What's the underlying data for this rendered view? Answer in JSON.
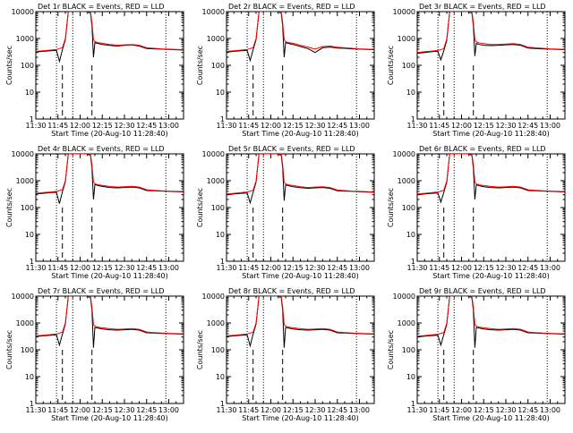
{
  "colors": {
    "events": "#000000",
    "lld": "#ff0000",
    "axes": "#000000",
    "background": "#ffffff"
  },
  "chart_data": {
    "type": "line",
    "yscale": "log",
    "ylim": [
      1,
      10000
    ],
    "y_ticks": [
      1,
      10,
      100,
      1000,
      10000
    ],
    "y_tick_labels": [
      "1",
      "10",
      "100",
      "1000",
      "10000"
    ],
    "ylabel": "Counts/sec",
    "xlim": [
      "11:30",
      "13:10"
    ],
    "x_ticks": [
      "11:30",
      "11:45",
      "12:00",
      "12:15",
      "12:30",
      "12:45",
      "13:00"
    ],
    "xlabel": "Start Time (20-Aug-10 11:28:40)",
    "grid": false,
    "series_names": [
      "Events",
      "LLD"
    ],
    "dashed_time_markers": [
      "11:48",
      "12:08"
    ],
    "dotted_time_markers": [
      "11:44",
      "11:55",
      "12:58"
    ],
    "panels": [
      {
        "title": "Det 1r BLACK = Events, RED = LLD",
        "x": [
          "11:30",
          "11:35",
          "11:40",
          "11:44",
          "11:46",
          "11:48",
          "11:50",
          "11:52",
          "11:54",
          "11:56",
          "12:00",
          "12:04",
          "12:07",
          "12:08",
          "12:09",
          "12:10",
          "12:12",
          "12:15",
          "12:20",
          "12:25",
          "12:30",
          "12:35",
          "12:40",
          "12:45",
          "12:50",
          "12:55",
          "13:00",
          "13:05",
          "13:10"
        ],
        "events": [
          310,
          330,
          350,
          360,
          140,
          380,
          900,
          10000,
          10000,
          10000,
          10000,
          10000,
          9000,
          3000,
          200,
          700,
          650,
          600,
          550,
          520,
          560,
          580,
          520,
          420,
          410,
          400,
          390,
          380,
          370
        ],
        "lld": [
          330,
          350,
          370,
          390,
          420,
          450,
          1000,
          10000,
          10000,
          10000,
          10000,
          10000,
          10000,
          4000,
          900,
          760,
          700,
          660,
          600,
          560,
          580,
          600,
          560,
          450,
          430,
          410,
          400,
          390,
          380
        ]
      },
      {
        "title": "Det 2r BLACK = Events, RED = LLD",
        "x": [
          "11:30",
          "11:35",
          "11:40",
          "11:44",
          "11:46",
          "11:48",
          "11:50",
          "11:52",
          "11:54",
          "11:56",
          "12:00",
          "12:04",
          "12:07",
          "12:08",
          "12:09",
          "12:10",
          "12:12",
          "12:15",
          "12:20",
          "12:25",
          "12:30",
          "12:35",
          "12:40",
          "12:45",
          "12:50",
          "12:55",
          "13:00",
          "13:05",
          "13:10"
        ],
        "events": [
          310,
          330,
          350,
          360,
          150,
          380,
          900,
          10000,
          10000,
          10000,
          10000,
          10000,
          9000,
          3000,
          200,
          700,
          650,
          600,
          500,
          420,
          300,
          450,
          480,
          440,
          430,
          410,
          400,
          390,
          380
        ],
        "lld": [
          330,
          350,
          370,
          390,
          420,
          450,
          1000,
          10000,
          10000,
          10000,
          10000,
          10000,
          10000,
          4000,
          900,
          760,
          700,
          660,
          560,
          480,
          400,
          500,
          520,
          470,
          450,
          430,
          410,
          400,
          390
        ]
      },
      {
        "title": "Det 3r BLACK = Events, RED = LLD",
        "x": [
          "11:30",
          "11:35",
          "11:40",
          "11:44",
          "11:46",
          "11:48",
          "11:50",
          "11:52",
          "11:54",
          "11:56",
          "12:00",
          "12:04",
          "12:07",
          "12:08",
          "12:09",
          "12:10",
          "12:12",
          "12:15",
          "12:20",
          "12:25",
          "12:30",
          "12:35",
          "12:40",
          "12:45",
          "12:50",
          "12:55",
          "13:00",
          "13:05",
          "13:10"
        ],
        "events": [
          280,
          300,
          320,
          330,
          160,
          350,
          850,
          10000,
          10000,
          10000,
          10000,
          10000,
          9000,
          3000,
          220,
          650,
          600,
          560,
          540,
          560,
          580,
          600,
          560,
          440,
          420,
          410,
          400,
          390,
          380
        ],
        "lld": [
          300,
          320,
          340,
          360,
          380,
          420,
          950,
          10000,
          10000,
          10000,
          10000,
          10000,
          10000,
          4000,
          880,
          740,
          680,
          640,
          600,
          600,
          620,
          640,
          600,
          470,
          450,
          430,
          410,
          400,
          390
        ]
      },
      {
        "title": "Det 4r BLACK = Events, RED = LLD",
        "x": [
          "11:30",
          "11:35",
          "11:40",
          "11:44",
          "11:46",
          "11:48",
          "11:50",
          "11:52",
          "11:54",
          "11:56",
          "12:00",
          "12:04",
          "12:07",
          "12:08",
          "12:09",
          "12:10",
          "12:12",
          "12:15",
          "12:20",
          "12:25",
          "12:30",
          "12:35",
          "12:40",
          "12:45",
          "12:50",
          "12:55",
          "13:00",
          "13:05",
          "13:10"
        ],
        "events": [
          320,
          340,
          360,
          370,
          140,
          390,
          920,
          10000,
          10000,
          10000,
          10000,
          10000,
          9000,
          3000,
          200,
          720,
          660,
          610,
          560,
          540,
          560,
          580,
          540,
          430,
          420,
          410,
          400,
          390,
          380
        ],
        "lld": [
          340,
          360,
          380,
          400,
          430,
          460,
          1000,
          10000,
          10000,
          10000,
          10000,
          10000,
          10000,
          4000,
          900,
          770,
          710,
          670,
          610,
          580,
          600,
          620,
          580,
          460,
          440,
          420,
          410,
          400,
          390
        ]
      },
      {
        "title": "Det 5r BLACK = Events, RED = LLD",
        "x": [
          "11:30",
          "11:35",
          "11:40",
          "11:44",
          "11:46",
          "11:48",
          "11:50",
          "11:52",
          "11:54",
          "11:56",
          "12:00",
          "12:04",
          "12:07",
          "12:08",
          "12:09",
          "12:10",
          "12:12",
          "12:15",
          "12:20",
          "12:25",
          "12:30",
          "12:35",
          "12:40",
          "12:45",
          "12:50",
          "12:55",
          "13:00",
          "13:05",
          "13:10"
        ],
        "events": [
          300,
          320,
          340,
          350,
          150,
          370,
          880,
          10000,
          10000,
          10000,
          10000,
          10000,
          9000,
          3000,
          180,
          700,
          650,
          600,
          550,
          520,
          540,
          560,
          520,
          420,
          410,
          400,
          390,
          380,
          370
        ],
        "lld": [
          320,
          340,
          360,
          380,
          410,
          440,
          980,
          10000,
          10000,
          10000,
          10000,
          10000,
          10000,
          4000,
          880,
          760,
          700,
          660,
          600,
          560,
          580,
          600,
          560,
          450,
          430,
          410,
          400,
          390,
          380
        ]
      },
      {
        "title": "Det 6r BLACK = Events, RED = LLD",
        "x": [
          "11:30",
          "11:35",
          "11:40",
          "11:44",
          "11:46",
          "11:48",
          "11:50",
          "11:52",
          "11:54",
          "11:56",
          "12:00",
          "12:04",
          "12:07",
          "12:08",
          "12:09",
          "12:10",
          "12:12",
          "12:15",
          "12:20",
          "12:25",
          "12:30",
          "12:35",
          "12:40",
          "12:45",
          "12:50",
          "12:55",
          "13:00",
          "13:05",
          "13:10"
        ],
        "events": [
          300,
          320,
          340,
          350,
          160,
          370,
          880,
          10000,
          10000,
          10000,
          10000,
          10000,
          9000,
          3000,
          200,
          700,
          650,
          600,
          560,
          540,
          560,
          580,
          540,
          430,
          420,
          410,
          400,
          390,
          380
        ],
        "lld": [
          320,
          340,
          360,
          380,
          410,
          440,
          980,
          10000,
          10000,
          10000,
          10000,
          10000,
          10000,
          4000,
          890,
          760,
          700,
          660,
          610,
          580,
          600,
          620,
          580,
          460,
          440,
          420,
          410,
          400,
          390
        ]
      },
      {
        "title": "Det 7r BLACK = Events, RED = LLD",
        "x": [
          "11:30",
          "11:35",
          "11:40",
          "11:44",
          "11:46",
          "11:48",
          "11:50",
          "11:52",
          "11:54",
          "11:56",
          "12:00",
          "12:04",
          "12:07",
          "12:08",
          "12:09",
          "12:10",
          "12:12",
          "12:15",
          "12:20",
          "12:25",
          "12:30",
          "12:35",
          "12:40",
          "12:45",
          "12:50",
          "12:55",
          "13:00",
          "13:05",
          "13:10"
        ],
        "events": [
          310,
          330,
          350,
          360,
          150,
          380,
          900,
          10000,
          10000,
          10000,
          10000,
          10000,
          9000,
          3000,
          120,
          680,
          640,
          600,
          560,
          540,
          560,
          580,
          540,
          430,
          420,
          410,
          400,
          390,
          380
        ],
        "lld": [
          330,
          350,
          370,
          390,
          420,
          450,
          1000,
          10000,
          10000,
          10000,
          10000,
          10000,
          10000,
          4000,
          880,
          760,
          700,
          660,
          610,
          580,
          600,
          620,
          580,
          460,
          440,
          420,
          410,
          400,
          390
        ]
      },
      {
        "title": "Det 8r BLACK = Events, RED = LLD",
        "x": [
          "11:30",
          "11:35",
          "11:40",
          "11:44",
          "11:46",
          "11:48",
          "11:50",
          "11:52",
          "11:54",
          "11:56",
          "12:00",
          "12:04",
          "12:07",
          "12:08",
          "12:09",
          "12:10",
          "12:12",
          "12:15",
          "12:20",
          "12:25",
          "12:30",
          "12:35",
          "12:40",
          "12:45",
          "12:50",
          "12:55",
          "13:00",
          "13:05",
          "13:10"
        ],
        "events": [
          310,
          330,
          350,
          360,
          140,
          380,
          900,
          10000,
          10000,
          10000,
          10000,
          10000,
          9000,
          3000,
          120,
          680,
          640,
          600,
          560,
          540,
          560,
          580,
          540,
          430,
          420,
          410,
          400,
          390,
          380
        ],
        "lld": [
          330,
          350,
          370,
          390,
          420,
          450,
          1000,
          10000,
          10000,
          10000,
          10000,
          10000,
          10000,
          4000,
          880,
          760,
          700,
          660,
          610,
          580,
          600,
          620,
          580,
          460,
          440,
          420,
          410,
          400,
          390
        ]
      },
      {
        "title": "Det 9r BLACK = Events, RED = LLD",
        "x": [
          "11:30",
          "11:35",
          "11:40",
          "11:44",
          "11:46",
          "11:48",
          "11:50",
          "11:52",
          "11:54",
          "11:56",
          "12:00",
          "12:04",
          "12:07",
          "12:08",
          "12:09",
          "12:10",
          "12:12",
          "12:15",
          "12:20",
          "12:25",
          "12:30",
          "12:35",
          "12:40",
          "12:45",
          "12:50",
          "12:55",
          "13:00",
          "13:05",
          "13:10"
        ],
        "events": [
          300,
          320,
          340,
          350,
          150,
          370,
          880,
          10000,
          10000,
          10000,
          10000,
          10000,
          9000,
          3000,
          120,
          680,
          640,
          600,
          560,
          540,
          560,
          580,
          540,
          430,
          420,
          410,
          400,
          390,
          380
        ],
        "lld": [
          320,
          340,
          360,
          380,
          410,
          440,
          980,
          10000,
          10000,
          10000,
          10000,
          10000,
          10000,
          4000,
          880,
          760,
          700,
          660,
          610,
          580,
          600,
          620,
          580,
          460,
          440,
          420,
          410,
          400,
          390
        ]
      }
    ]
  }
}
